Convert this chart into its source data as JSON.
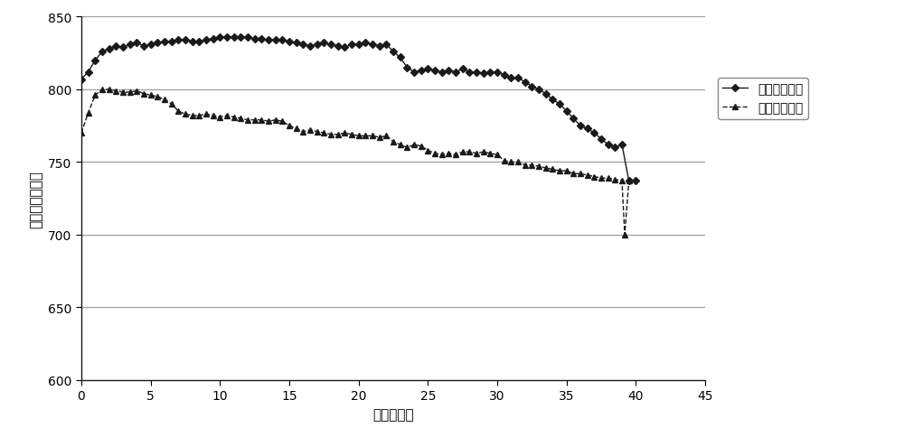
{
  "title": "",
  "xlabel": "长度（米）",
  "ylabel": "温度（摄氏度）",
  "xlim": [
    0,
    45
  ],
  "ylim": [
    600,
    850
  ],
  "yticks": [
    600,
    650,
    700,
    750,
    800,
    850
  ],
  "xticks": [
    0,
    5,
    10,
    15,
    20,
    25,
    30,
    35,
    40,
    45
  ],
  "series1_label": "精轧终轧温度",
  "series2_label": "冷却开始温度",
  "series1_x": [
    0,
    0.5,
    1,
    1.5,
    2,
    2.5,
    3,
    3.5,
    4,
    4.5,
    5,
    5.5,
    6,
    6.5,
    7,
    7.5,
    8,
    8.5,
    9,
    9.5,
    10,
    10.5,
    11,
    11.5,
    12,
    12.5,
    13,
    13.5,
    14,
    14.5,
    15,
    15.5,
    16,
    16.5,
    17,
    17.5,
    18,
    18.5,
    19,
    19.5,
    20,
    20.5,
    21,
    21.5,
    22,
    22.5,
    23,
    23.5,
    24,
    24.5,
    25,
    25.5,
    26,
    26.5,
    27,
    27.5,
    28,
    28.5,
    29,
    29.5,
    30,
    30.5,
    31,
    31.5,
    32,
    32.5,
    33,
    33.5,
    34,
    34.5,
    35,
    35.5,
    36,
    36.5,
    37,
    37.5,
    38,
    38.5,
    39,
    39.5,
    40
  ],
  "series1_y": [
    807,
    812,
    820,
    826,
    828,
    830,
    829,
    831,
    832,
    830,
    831,
    832,
    833,
    833,
    834,
    834,
    833,
    833,
    834,
    835,
    836,
    836,
    836,
    836,
    836,
    835,
    835,
    834,
    834,
    834,
    833,
    832,
    831,
    830,
    831,
    832,
    831,
    830,
    829,
    831,
    831,
    832,
    831,
    830,
    831,
    826,
    822,
    815,
    812,
    813,
    814,
    813,
    812,
    813,
    812,
    814,
    812,
    812,
    811,
    812,
    812,
    810,
    808,
    808,
    805,
    802,
    800,
    797,
    793,
    790,
    785,
    780,
    775,
    773,
    770,
    766,
    762,
    760,
    762,
    737,
    737
  ],
  "series2_x": [
    0,
    0.5,
    1,
    1.5,
    2,
    2.5,
    3,
    3.5,
    4,
    4.5,
    5,
    5.5,
    6,
    6.5,
    7,
    7.5,
    8,
    8.5,
    9,
    9.5,
    10,
    10.5,
    11,
    11.5,
    12,
    12.5,
    13,
    13.5,
    14,
    14.5,
    15,
    15.5,
    16,
    16.5,
    17,
    17.5,
    18,
    18.5,
    19,
    19.5,
    20,
    20.5,
    21,
    21.5,
    22,
    22.5,
    23,
    23.5,
    24,
    24.5,
    25,
    25.5,
    26,
    26.5,
    27,
    27.5,
    28,
    28.5,
    29,
    29.5,
    30,
    30.5,
    31,
    31.5,
    32,
    32.5,
    33,
    33.5,
    34,
    34.5,
    35,
    35.5,
    36,
    36.5,
    37,
    37.5,
    38,
    38.5,
    39,
    39.2,
    39.5
  ],
  "series2_y": [
    770,
    784,
    796,
    800,
    800,
    799,
    798,
    798,
    799,
    797,
    796,
    795,
    793,
    790,
    785,
    783,
    782,
    782,
    783,
    782,
    781,
    782,
    781,
    780,
    779,
    779,
    779,
    778,
    779,
    778,
    775,
    773,
    771,
    772,
    771,
    770,
    769,
    769,
    770,
    769,
    768,
    768,
    768,
    767,
    768,
    764,
    762,
    760,
    762,
    761,
    758,
    756,
    755,
    756,
    755,
    757,
    757,
    756,
    757,
    756,
    755,
    751,
    750,
    750,
    748,
    748,
    747,
    746,
    745,
    744,
    744,
    742,
    742,
    741,
    740,
    739,
    739,
    738,
    737,
    700,
    737
  ],
  "line_color": "#1a1a1a",
  "marker_size": 4,
  "background_color": "#ffffff",
  "grid_color": "#999999"
}
